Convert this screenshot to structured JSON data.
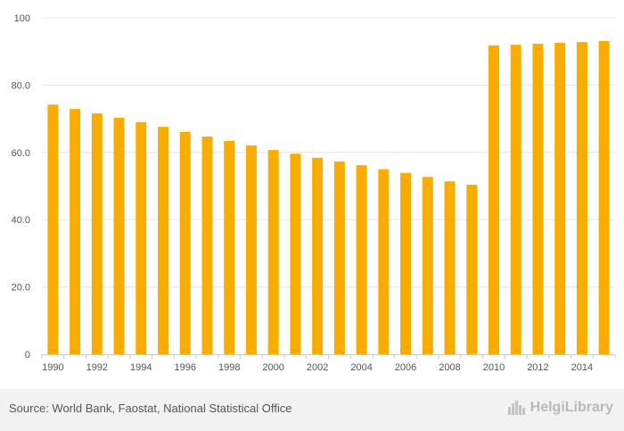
{
  "chart_data": {
    "type": "bar",
    "categories": [
      "1990",
      "1991",
      "1992",
      "1993",
      "1994",
      "1995",
      "1996",
      "1997",
      "1998",
      "1999",
      "2000",
      "2001",
      "2002",
      "2003",
      "2004",
      "2005",
      "2006",
      "2007",
      "2008",
      "2009",
      "2010",
      "2011",
      "2012",
      "2013",
      "2014",
      "2015"
    ],
    "tick_labels": [
      "1990",
      "1992",
      "1994",
      "1996",
      "1998",
      "2000",
      "2002",
      "2004",
      "2006",
      "2008",
      "2010",
      "2012",
      "2014"
    ],
    "values": [
      74.2,
      72.9,
      71.6,
      70.3,
      69.0,
      67.6,
      66.1,
      64.7,
      63.4,
      62.1,
      60.7,
      59.6,
      58.4,
      57.3,
      56.2,
      55.0,
      53.9,
      52.7,
      51.4,
      50.4,
      91.8,
      92.0,
      92.3,
      92.6,
      92.8,
      93.1
    ],
    "y_ticks": [
      "0",
      "20.0",
      "40.0",
      "60.0",
      "80.0",
      "100"
    ],
    "y_tick_values": [
      0,
      20,
      40,
      60,
      80,
      100
    ],
    "ylim": [
      0,
      100
    ],
    "title": "",
    "xlabel": "",
    "ylabel": "",
    "grid": true,
    "bar_color": "#f8ad00",
    "grid_color": "#e6e6e6"
  },
  "footer": {
    "source": "Source: World Bank, Faostat, National Statistical Office",
    "brand": "HelgiLibrary",
    "brand_icon": "city-skyline-icon"
  }
}
